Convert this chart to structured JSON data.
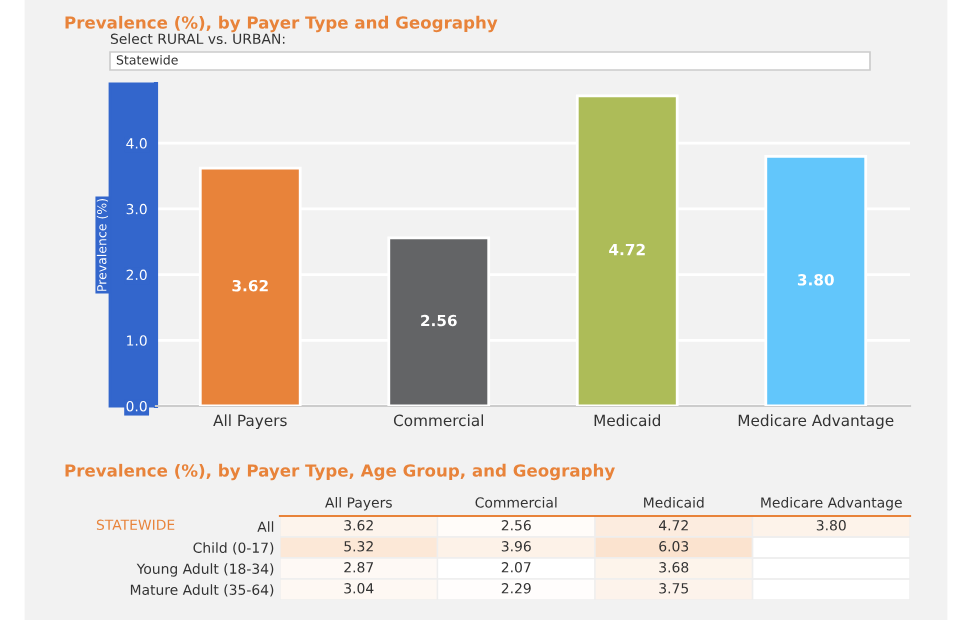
{
  "chart_data": [
    {
      "type": "bar",
      "title": "Prevalence (%), by Payer Type and Geography",
      "ylabel": "Prevalence (%)",
      "annotations": [
        "Select RURAL vs. URBAN:",
        "Statewide"
      ],
      "categories": [
        "All Payers",
        "Commercial",
        "Medicaid",
        "Medicare Advantage"
      ],
      "values": [
        3.62,
        2.56,
        4.72,
        3.8
      ],
      "colors": [
        "#e8833a",
        "#636466",
        "#adbc58",
        "#62c6fb"
      ],
      "value_labels": [
        "3.62",
        "2.56",
        "4.72",
        "3.80"
      ],
      "ylim": [
        0,
        4.9
      ],
      "yticks": [
        {
          "value": 0,
          "label": "0.0"
        },
        {
          "value": 1,
          "label": "1.0"
        },
        {
          "value": 2,
          "label": "2.0"
        },
        {
          "value": 3,
          "label": "3.0"
        },
        {
          "value": 4,
          "label": "4.0"
        }
      ],
      "grid": "y"
    },
    {
      "type": "heatmap",
      "title": "Prevalence (%), by Payer Type, Age Group, and Geography",
      "annotations": [
        "STATEWIDE"
      ],
      "categories": [
        "All Payers",
        "Commercial",
        "Medicaid",
        "Medicare Advantage"
      ],
      "y_categories": [
        "All",
        "Child (0-17)",
        "Young Adult (18-34)",
        "Mature Adult (35-64)"
      ],
      "cells": [
        [
          3.62,
          2.56,
          4.72,
          3.8
        ],
        [
          5.32,
          3.96,
          6.03,
          null
        ],
        [
          2.87,
          2.07,
          3.68,
          null
        ],
        [
          3.04,
          2.29,
          3.75,
          null
        ]
      ],
      "cell_labels": [
        [
          "3.62",
          "2.56",
          "4.72",
          "3.80"
        ],
        [
          "5.32",
          "3.96",
          "6.03",
          null
        ],
        [
          "2.87",
          "2.07",
          "3.68",
          null
        ],
        [
          "3.04",
          "2.29",
          "3.75",
          null
        ]
      ]
    }
  ]
}
